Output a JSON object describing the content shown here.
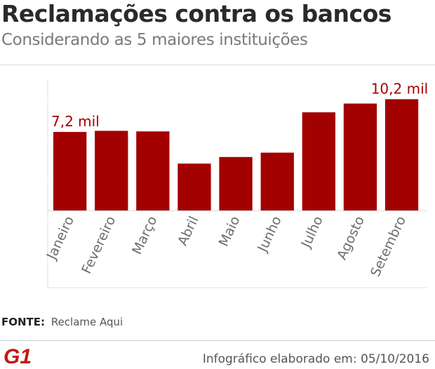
{
  "header": {
    "title": "Reclamações contra os bancos",
    "subtitle": "Considerando as 5 maiores instituições"
  },
  "chart_data": {
    "type": "bar",
    "categories": [
      "Janeiro",
      "Fevereiro",
      "Março",
      "Abril",
      "Maio",
      "Junho",
      "Julho",
      "Agosto",
      "Setembro"
    ],
    "values": [
      7.2,
      7.3,
      7.25,
      4.3,
      4.9,
      5.3,
      9.0,
      9.8,
      10.2
    ],
    "data_labels": [
      {
        "index": 0,
        "text": "7,2 mil"
      },
      {
        "index": 8,
        "text": "10,2 mil"
      }
    ],
    "ylim": [
      0,
      11.9
    ],
    "grid": false,
    "bar_color": "#a30000"
  },
  "footer": {
    "source_label": "FONTE:",
    "source_value": "Reclame Aqui",
    "note": "Infográfico elaborado em: 05/10/2016",
    "logo_text": "G1",
    "logo_color": "#c4170c"
  }
}
